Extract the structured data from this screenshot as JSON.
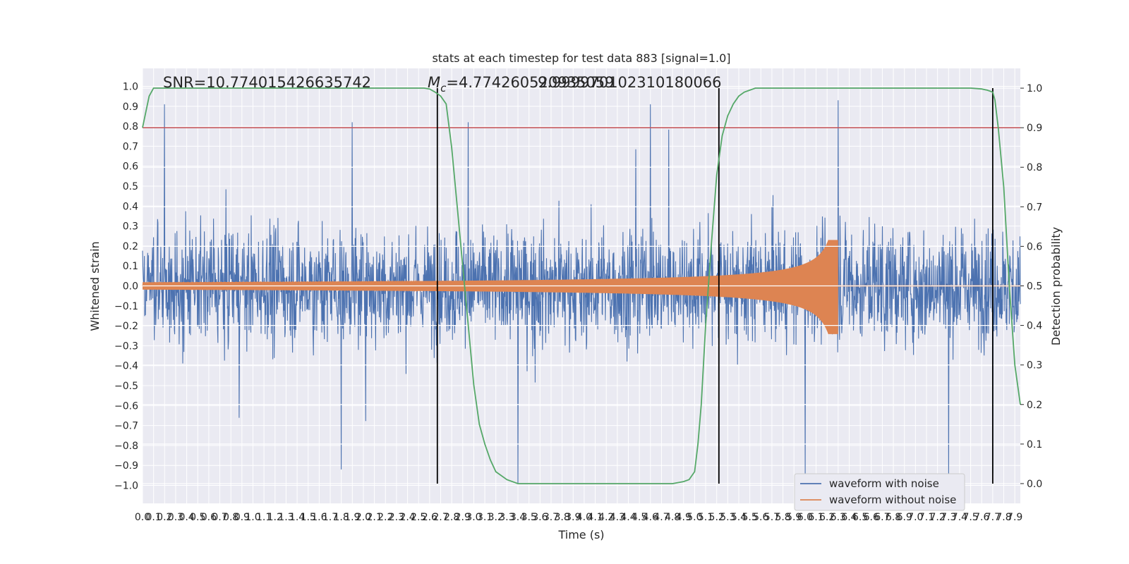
{
  "chart_data": {
    "type": "line",
    "title": "stats at each timestep for test data 883 [signal=1.0]",
    "xlabel": "Time (s)",
    "ylabel": "Whitened strain",
    "y2label": "Detection probability",
    "xlim": [
      0.0,
      7.95
    ],
    "ylim": [
      -1.09,
      1.09
    ],
    "y2lim": [
      -0.05,
      1.05
    ],
    "x_ticks": [
      0.0,
      0.1,
      0.2,
      0.3,
      0.4,
      0.5,
      0.6,
      0.7,
      0.8,
      0.9,
      1.0,
      1.1,
      1.2,
      1.3,
      1.4,
      1.5,
      1.6,
      1.7,
      1.8,
      1.9,
      2.0,
      2.1,
      2.2,
      2.3,
      2.4,
      2.5,
      2.6,
      2.7,
      2.8,
      2.9,
      3.0,
      3.1,
      3.2,
      3.3,
      3.4,
      3.5,
      3.6,
      3.7,
      3.8,
      3.9,
      4.0,
      4.1,
      4.2,
      4.3,
      4.4,
      4.5,
      4.6,
      4.7,
      4.8,
      4.9,
      5.0,
      5.1,
      5.2,
      5.3,
      5.4,
      5.5,
      5.6,
      5.7,
      5.8,
      5.9,
      6.0,
      6.1,
      6.2,
      6.3,
      6.4,
      6.5,
      6.6,
      6.7,
      6.8,
      6.9,
      7.0,
      7.1,
      7.2,
      7.3,
      7.4,
      7.5,
      7.6,
      7.7,
      7.8,
      7.9
    ],
    "y_ticks": [
      1.0,
      0.9,
      0.8,
      0.7,
      0.6,
      0.5,
      0.4,
      0.3,
      0.2,
      0.1,
      0.0,
      -0.1,
      -0.2,
      -0.3,
      -0.4,
      -0.5,
      -0.6,
      -0.7,
      -0.8,
      -0.9,
      -1.0
    ],
    "y2_ticks": [
      0.0,
      0.1,
      0.2,
      0.3,
      0.4,
      0.5,
      0.6,
      0.7,
      0.8,
      0.9,
      1.0
    ],
    "grid": true,
    "legend_position": "lower right",
    "annotations": {
      "snr": "SNR=10.774015426635742",
      "mc_symbol": "M",
      "mc_sub": "c",
      "mc_value": "=4.774260520935059",
      "mc_overlap": "9.999970102310180066"
    },
    "threshold": {
      "value": 0.9,
      "color": "#c44e52"
    },
    "event_markers_x": [
      2.67,
      5.22,
      7.7
    ],
    "series": [
      {
        "name": "waveform with noise",
        "color": "#4c72b0",
        "kind": "noise",
        "peaks": [
          {
            "x": 0.2,
            "y": 0.91
          },
          {
            "x": 1.9,
            "y": 0.82
          },
          {
            "x": 4.6,
            "y": 0.91
          },
          {
            "x": 6.3,
            "y": 0.93
          },
          {
            "x": 2.95,
            "y": 0.82
          },
          {
            "x": 3.4,
            "y": -0.99
          },
          {
            "x": 6.0,
            "y": -0.97
          },
          {
            "x": 7.3,
            "y": -0.96
          },
          {
            "x": 1.8,
            "y": -0.92
          },
          {
            "x": 7.7,
            "y": -0.94
          }
        ]
      },
      {
        "name": "waveform without noise",
        "color": "#dd8452",
        "kind": "chirp",
        "merger_x": 6.3,
        "peak_y": 0.23,
        "min_y": -0.3,
        "start_amplitude": 0.018
      },
      {
        "name": "detection probability",
        "color": "#55a868",
        "axis": "right",
        "x": [
          0.0,
          0.03,
          0.06,
          0.1,
          0.15,
          0.2,
          0.5,
          1.0,
          1.5,
          2.0,
          2.4,
          2.55,
          2.6,
          2.65,
          2.7,
          2.75,
          2.8,
          2.85,
          2.9,
          2.95,
          3.0,
          3.05,
          3.1,
          3.15,
          3.2,
          3.3,
          3.4,
          3.6,
          4.0,
          4.4,
          4.8,
          4.9,
          4.95,
          5.0,
          5.03,
          5.06,
          5.1,
          5.15,
          5.2,
          5.25,
          5.3,
          5.35,
          5.4,
          5.45,
          5.5,
          5.55,
          5.6,
          5.7,
          5.8,
          6.0,
          6.5,
          7.0,
          7.5,
          7.6,
          7.65,
          7.7,
          7.72,
          7.75,
          7.8,
          7.85,
          7.9,
          7.95
        ],
        "y": [
          0.9,
          0.94,
          0.98,
          1.0,
          1.0,
          1.0,
          1.0,
          1.0,
          1.0,
          1.0,
          1.0,
          1.0,
          0.998,
          0.99,
          0.98,
          0.96,
          0.85,
          0.7,
          0.55,
          0.4,
          0.25,
          0.15,
          0.1,
          0.06,
          0.03,
          0.01,
          0.0,
          0.0,
          0.0,
          0.0,
          0.0,
          0.005,
          0.01,
          0.03,
          0.1,
          0.2,
          0.4,
          0.6,
          0.78,
          0.88,
          0.93,
          0.96,
          0.98,
          0.99,
          0.995,
          1.0,
          1.0,
          1.0,
          1.0,
          1.0,
          1.0,
          1.0,
          1.0,
          0.998,
          0.995,
          0.99,
          0.97,
          0.9,
          0.75,
          0.5,
          0.3,
          0.2
        ]
      }
    ],
    "legend": [
      {
        "label": "waveform with noise",
        "color": "#4c72b0"
      },
      {
        "label": "waveform without noise",
        "color": "#dd8452"
      }
    ]
  }
}
